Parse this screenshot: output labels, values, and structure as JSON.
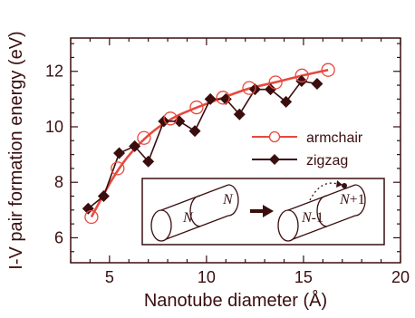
{
  "chart_data": {
    "type": "line",
    "xlabel": "Nanotube diameter (Å)",
    "ylabel": "I-V pair formation energy (eV)",
    "xlim": [
      3,
      20
    ],
    "ylim": [
      5.1,
      13.2
    ],
    "xticks": [
      5,
      10,
      15,
      20
    ],
    "yticks": [
      6,
      8,
      10,
      12
    ],
    "grid": false,
    "legend": "right, inside plot",
    "series": [
      {
        "name": "armchair",
        "marker": "open-circle",
        "color": "#e8483e",
        "fit_curve": true,
        "x": [
          4.07,
          5.42,
          6.78,
          8.14,
          9.49,
          10.85,
          12.2,
          13.56,
          14.92,
          16.27
        ],
        "y": [
          6.75,
          8.5,
          9.6,
          10.3,
          10.7,
          11.05,
          11.4,
          11.6,
          11.85,
          12.05
        ]
      },
      {
        "name": "zigzag",
        "marker": "filled-diamond",
        "color": "#3a0e0e",
        "x": [
          3.9,
          4.7,
          5.5,
          6.3,
          7.0,
          7.8,
          8.6,
          9.4,
          10.2,
          11.0,
          11.7,
          12.5,
          13.3,
          14.1,
          14.9,
          15.7
        ],
        "y": [
          7.05,
          7.5,
          9.05,
          9.3,
          8.75,
          10.2,
          10.2,
          9.85,
          11.0,
          11.0,
          10.45,
          11.35,
          11.35,
          10.9,
          11.65,
          11.55
        ]
      }
    ]
  },
  "inset": {
    "left_label": "N",
    "right_left_label": "N",
    "right_left_suffix": "-1",
    "right_right_label": "N",
    "right_right_suffix": "+1"
  },
  "colors": {
    "axis": "#3a0e0e",
    "armchair": "#e8483e",
    "zigzag": "#3a0e0e"
  }
}
